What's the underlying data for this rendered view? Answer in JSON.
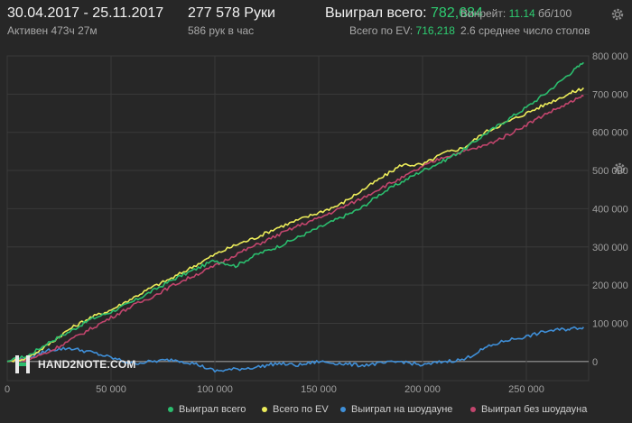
{
  "header": {
    "date_range": "30.04.2017 - 25.11.2017",
    "active_time": "Активен 473ч 27м",
    "hands_label": "277 578 Руки",
    "hands_per_hour": "586 рук в час",
    "won_total_label": "Выиграл всего:",
    "won_total_value": "782,684",
    "ev_total_label": "Всего по EV:",
    "ev_total_value": "716,218",
    "winrate_label": "Винрейт:",
    "winrate_value": "11.14",
    "winrate_unit": "бб/100",
    "avg_tables": "2.6 среднее число столов"
  },
  "logo_text": "HAND2NOTE.COM",
  "icons": {
    "settings_top": "gear-icon",
    "settings_side": "gear-icon",
    "logo": "hand2note-logo-icon"
  },
  "colors": {
    "background": "#272727",
    "won_total": "#2bbd6e",
    "ev_total": "#ecec5a",
    "showdown": "#3f8fd8",
    "non_showdown": "#c2456d",
    "zero_line": "#9a9a9a",
    "grid": "#3a3a3a"
  },
  "chart_data": {
    "type": "line",
    "x_ticks": [
      "0",
      "50 000",
      "100 000",
      "150 000",
      "200 000",
      "250 000"
    ],
    "y_ticks": [
      "800 000",
      "700 000",
      "600 000",
      "500 000",
      "400 000",
      "300 000",
      "200 000",
      "100 000",
      "0"
    ],
    "xlim": [
      0,
      280000
    ],
    "ylim": [
      -50000,
      800000
    ],
    "series": [
      {
        "name": "Выиграл всего",
        "color": "#2bbd6e",
        "x": [
          0,
          10000,
          20000,
          30000,
          40000,
          50000,
          60000,
          70000,
          80000,
          90000,
          100000,
          110000,
          120000,
          130000,
          140000,
          150000,
          160000,
          170000,
          180000,
          190000,
          200000,
          210000,
          220000,
          230000,
          240000,
          250000,
          260000,
          270000,
          277578
        ],
        "y": [
          0,
          15000,
          50000,
          78000,
          110000,
          130000,
          155000,
          185000,
          215000,
          240000,
          265000,
          250000,
          280000,
          300000,
          325000,
          350000,
          375000,
          400000,
          440000,
          470000,
          500000,
          525000,
          555000,
          595000,
          630000,
          665000,
          705000,
          750000,
          782684
        ]
      },
      {
        "name": "Всего по EV",
        "color": "#ecec5a",
        "x": [
          0,
          10000,
          20000,
          30000,
          40000,
          50000,
          60000,
          70000,
          80000,
          90000,
          100000,
          110000,
          120000,
          130000,
          140000,
          150000,
          160000,
          170000,
          180000,
          190000,
          200000,
          210000,
          220000,
          230000,
          240000,
          250000,
          260000,
          270000,
          277578
        ],
        "y": [
          0,
          10000,
          45000,
          85000,
          115000,
          135000,
          165000,
          195000,
          220000,
          250000,
          280000,
          305000,
          325000,
          350000,
          370000,
          390000,
          410000,
          445000,
          480000,
          515000,
          515000,
          545000,
          560000,
          600000,
          625000,
          650000,
          675000,
          700000,
          716218
        ]
      },
      {
        "name": "Выиграл на шоудауне",
        "color": "#3f8fd8",
        "x": [
          0,
          10000,
          20000,
          30000,
          40000,
          50000,
          60000,
          70000,
          80000,
          90000,
          100000,
          110000,
          120000,
          130000,
          140000,
          150000,
          160000,
          170000,
          180000,
          190000,
          200000,
          210000,
          220000,
          230000,
          240000,
          250000,
          260000,
          270000,
          277578
        ],
        "y": [
          0,
          10000,
          30000,
          35000,
          25000,
          10000,
          -5000,
          0,
          5000,
          -5000,
          -25000,
          -20000,
          -15000,
          -5000,
          -10000,
          0,
          -5000,
          -10000,
          -5000,
          0,
          -10000,
          0,
          5000,
          35000,
          55000,
          65000,
          80000,
          85000,
          90000
        ]
      },
      {
        "name": "Выиграл без шоудауна",
        "color": "#c2456d",
        "x": [
          0,
          10000,
          20000,
          30000,
          40000,
          50000,
          60000,
          70000,
          80000,
          90000,
          100000,
          110000,
          120000,
          130000,
          140000,
          150000,
          160000,
          170000,
          180000,
          190000,
          200000,
          210000,
          220000,
          230000,
          240000,
          250000,
          260000,
          270000,
          277578
        ],
        "y": [
          0,
          5000,
          25000,
          55000,
          85000,
          115000,
          145000,
          170000,
          200000,
          225000,
          250000,
          280000,
          305000,
          330000,
          355000,
          375000,
          400000,
          425000,
          455000,
          480000,
          510000,
          535000,
          550000,
          565000,
          590000,
          620000,
          650000,
          675000,
          695000
        ]
      }
    ],
    "legend_position": "bottom-right",
    "grid": true
  }
}
